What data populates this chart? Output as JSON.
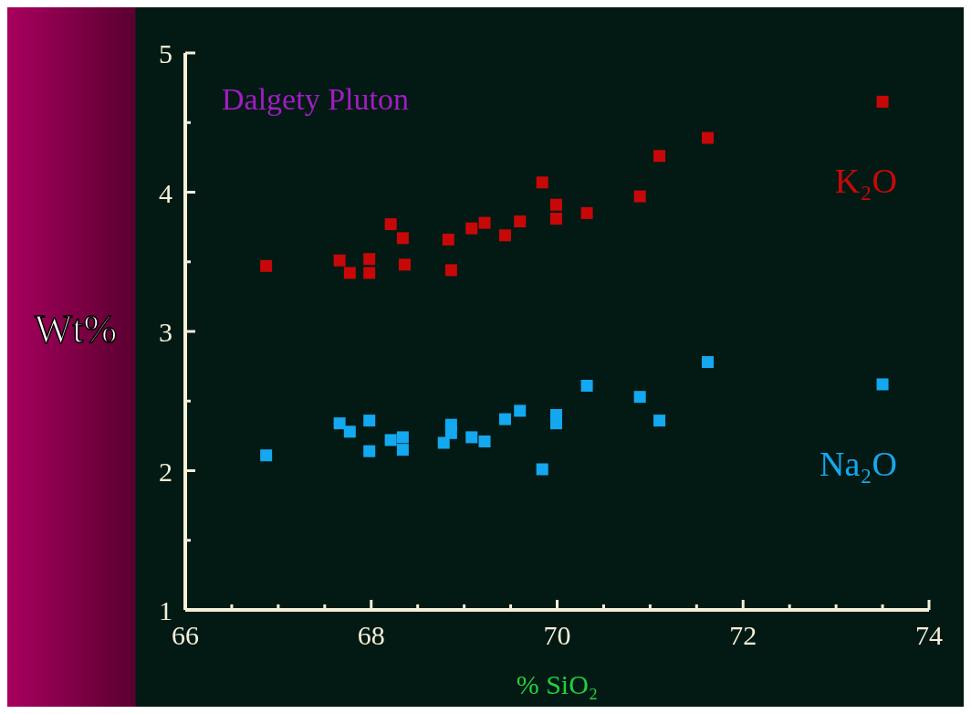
{
  "chart_data": {
    "type": "scatter",
    "title": "Dalgety Pluton",
    "xlabel": "% SiO₂",
    "ylabel": "Wt%",
    "xlim": [
      66,
      74
    ],
    "ylim": [
      1,
      5
    ],
    "xticks": [
      66,
      {
        "value": 66.5,
        "label": null
      },
      68,
      {
        "value": 67,
        "label": null
      },
      {
        "value": 67.5,
        "label": null
      },
      {
        "value": 68.5,
        "label": null
      },
      {
        "value": 69,
        "label": null
      },
      {
        "value": 69.5,
        "label": null
      },
      70,
      {
        "value": 70.5,
        "label": null
      },
      {
        "value": 71,
        "label": null
      },
      {
        "value": 71.5,
        "label": null
      },
      72,
      {
        "value": 72.5,
        "label": null
      },
      {
        "value": 73,
        "label": null
      },
      {
        "value": 73.5,
        "label": null
      },
      74
    ],
    "yticks": [
      1,
      {
        "value": 1.5,
        "label": null
      },
      2,
      {
        "value": 2.5,
        "label": null
      },
      3,
      {
        "value": 3.5,
        "label": null
      },
      4,
      {
        "value": 4.5,
        "label": null
      },
      5
    ],
    "marker": "square",
    "legend": false,
    "grid": false,
    "series": [
      {
        "name": "K₂O",
        "color": "#c80808",
        "x": [
          66.87,
          67.66,
          67.77,
          67.98,
          67.98,
          68.21,
          68.34,
          68.36,
          68.83,
          68.86,
          69.08,
          69.22,
          69.44,
          69.6,
          69.84,
          69.99,
          69.99,
          70.32,
          70.89,
          71.1,
          71.62,
          73.5
        ],
        "values": [
          3.47,
          3.51,
          3.42,
          3.52,
          3.42,
          3.77,
          3.67,
          3.48,
          3.66,
          3.44,
          3.74,
          3.78,
          3.69,
          3.79,
          4.07,
          3.91,
          3.81,
          3.85,
          3.97,
          4.26,
          4.39,
          4.65
        ]
      },
      {
        "name": "Na₂O",
        "color": "#14a8f0",
        "x": [
          66.87,
          67.66,
          67.77,
          67.98,
          67.98,
          68.21,
          68.34,
          68.34,
          68.86,
          68.86,
          68.78,
          69.08,
          69.22,
          69.44,
          69.6,
          69.84,
          69.99,
          69.99,
          70.32,
          70.89,
          71.1,
          71.62,
          73.5
        ],
        "values": [
          2.11,
          2.34,
          2.28,
          2.36,
          2.14,
          2.22,
          2.24,
          2.15,
          2.33,
          2.27,
          2.2,
          2.24,
          2.21,
          2.37,
          2.43,
          2.01,
          2.4,
          2.34,
          2.61,
          2.53,
          2.36,
          2.78,
          2.62
        ]
      }
    ]
  }
}
